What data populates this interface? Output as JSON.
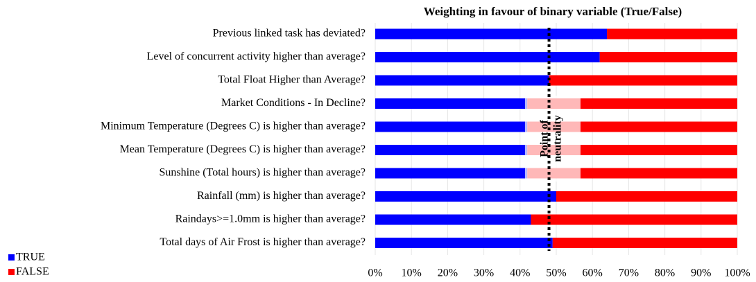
{
  "chart_data": {
    "type": "stacked_bar_horizontal",
    "title": "Weighting in favour of binary variable (True/False)",
    "categories": [
      "Previous linked task has deviated?",
      "Level of concurrent activity higher than average?",
      "Total Float Higher than Average?",
      "Market Conditions - In Decline?",
      "Minimum Temperature (Degrees C) is higher than average?",
      "Mean Temperature (Degrees C) is higher than average?",
      "Sunshine (Total hours) is higher than average?",
      "Rainfall (mm) is higher than average?",
      "Raindays>=1.0mm is higher than average?",
      "Total days of Air Frost is higher than average?"
    ],
    "series": [
      {
        "name": "TRUE",
        "color": "#0000ff",
        "values": [
          64,
          62,
          48,
          42,
          42,
          42,
          42,
          50,
          43,
          49
        ]
      },
      {
        "name": "FALSE",
        "color": "#ff0000",
        "values": [
          36,
          38,
          52,
          58,
          58,
          58,
          58,
          50,
          57,
          51
        ]
      }
    ],
    "xlim": [
      0,
      100
    ],
    "xticks": [
      {
        "value": 0,
        "label": "0%"
      },
      {
        "value": 10,
        "label": "10%"
      },
      {
        "value": 20,
        "label": "20%"
      },
      {
        "value": 30,
        "label": "30%"
      },
      {
        "value": 40,
        "label": "40%"
      },
      {
        "value": 50,
        "label": "50%"
      },
      {
        "value": 60,
        "label": "60%"
      },
      {
        "value": 70,
        "label": "70%"
      },
      {
        "value": 80,
        "label": "80%"
      },
      {
        "value": 90,
        "label": "90%"
      },
      {
        "value": 100,
        "label": "100%"
      }
    ],
    "grid": true,
    "legend": "bottom-left",
    "neutrality_line": 48,
    "annotation": [
      "Point of",
      "neutrality"
    ]
  }
}
